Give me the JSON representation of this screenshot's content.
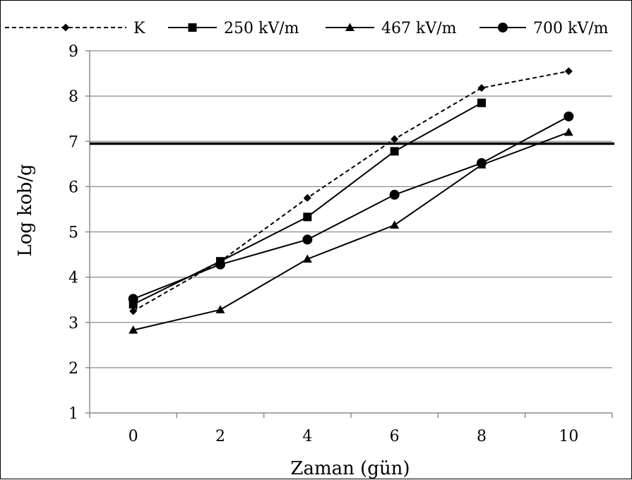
{
  "chart_data": {
    "type": "line",
    "xlabel": "Zaman (gün)",
    "ylabel": "Log kob/g",
    "x": [
      0,
      2,
      4,
      6,
      8,
      10
    ],
    "xticks": [
      "0",
      "2",
      "4",
      "6",
      "8",
      "10"
    ],
    "xlim": [
      -1,
      11
    ],
    "ylim": [
      1,
      9
    ],
    "yticks": [
      "1",
      "2",
      "3",
      "4",
      "5",
      "6",
      "7",
      "8",
      "9"
    ],
    "grid": "horizontal",
    "legend_position": "top",
    "reference_line": {
      "y": 6.95
    },
    "series": [
      {
        "name": "K",
        "marker": "diamond",
        "dashed": true,
        "x": [
          0,
          2,
          4,
          6,
          8,
          10
        ],
        "values": [
          3.25,
          4.35,
          5.75,
          7.05,
          8.18,
          8.55
        ]
      },
      {
        "name": "250 kV/m",
        "marker": "square",
        "dashed": false,
        "x": [
          0,
          2,
          4,
          6,
          8
        ],
        "values": [
          3.4,
          4.35,
          5.33,
          6.78,
          7.85
        ]
      },
      {
        "name": "467 kV/m",
        "marker": "triangle",
        "dashed": false,
        "x": [
          0,
          2,
          4,
          6,
          8,
          10
        ],
        "values": [
          2.83,
          3.28,
          4.4,
          5.15,
          6.48,
          7.2
        ]
      },
      {
        "name": "700 kV/m",
        "marker": "circle",
        "dashed": false,
        "x": [
          0,
          2,
          4,
          6,
          8,
          10
        ],
        "values": [
          3.52,
          4.28,
          4.83,
          5.82,
          6.52,
          7.55
        ]
      }
    ]
  }
}
